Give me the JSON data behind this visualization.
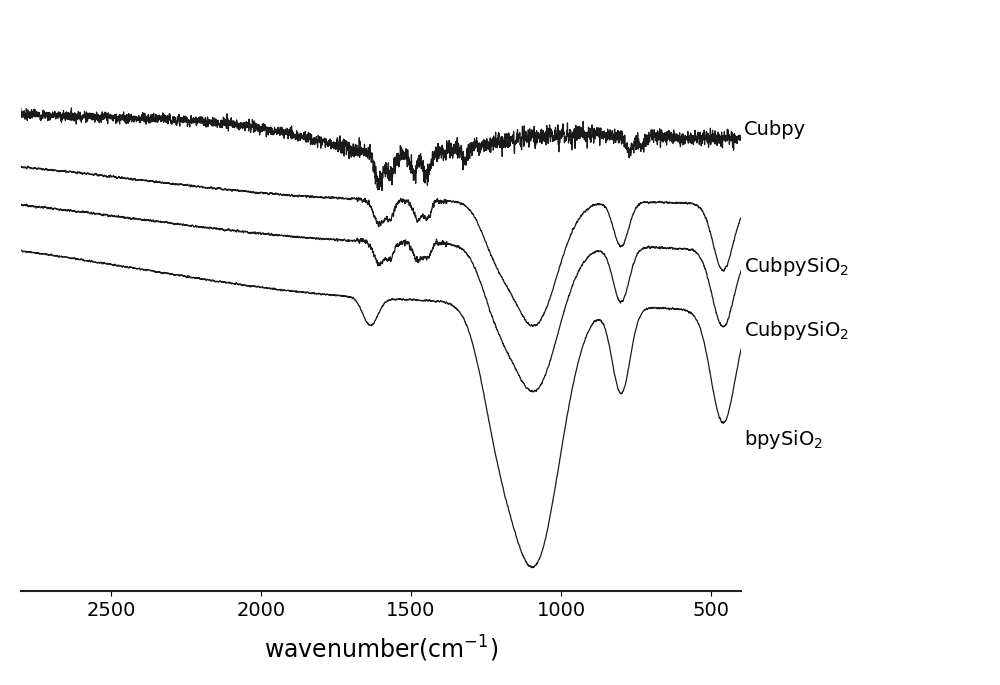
{
  "x_min": 400,
  "x_max": 2800,
  "xlabel": "wavenumber(cm$^{-1}$)",
  "xlabel_fontsize": 17,
  "tick_fontsize": 14,
  "background_color": "#ffffff",
  "line_color": "#1a1a1a",
  "labels": [
    "Cubpy",
    "CubpySiO$_2$",
    "CubpySiO$_2$",
    "bpySiO$_2$"
  ],
  "label_fontsize": 14,
  "xticks": [
    2500,
    2000,
    1500,
    1000,
    500
  ]
}
